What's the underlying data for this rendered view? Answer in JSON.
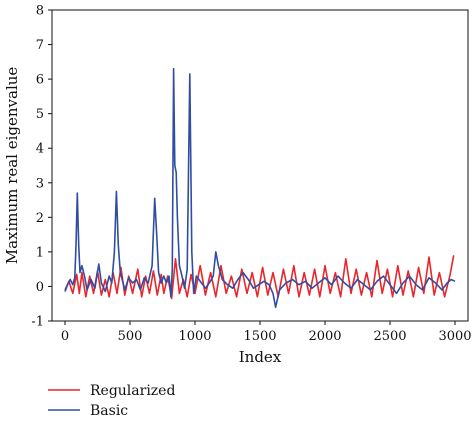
{
  "chart_data": {
    "type": "line",
    "title": "",
    "xlabel": "Index",
    "ylabel": "Maximum real eigenvalue",
    "xlim": [
      -100,
      3100
    ],
    "ylim": [
      -1,
      8
    ],
    "x_ticks": [
      0,
      500,
      1000,
      1500,
      2000,
      2500,
      3000
    ],
    "y_ticks": [
      -1,
      0,
      1,
      2,
      3,
      4,
      5,
      6,
      7,
      8
    ],
    "grid": false,
    "legend_position": "below-left",
    "series": [
      {
        "name": "Regularized",
        "color": "#e8262b",
        "points": [
          [
            0,
            -0.1
          ],
          [
            30,
            0.15
          ],
          [
            60,
            -0.2
          ],
          [
            90,
            0.35
          ],
          [
            110,
            -0.2
          ],
          [
            130,
            0.4
          ],
          [
            160,
            -0.3
          ],
          [
            190,
            0.3
          ],
          [
            220,
            -0.2
          ],
          [
            250,
            0.45
          ],
          [
            280,
            -0.25
          ],
          [
            310,
            0.2
          ],
          [
            340,
            -0.3
          ],
          [
            370,
            0.4
          ],
          [
            400,
            -0.2
          ],
          [
            430,
            0.55
          ],
          [
            460,
            -0.25
          ],
          [
            490,
            0.3
          ],
          [
            520,
            -0.2
          ],
          [
            560,
            0.5
          ],
          [
            590,
            -0.3
          ],
          [
            620,
            0.3
          ],
          [
            650,
            -0.2
          ],
          [
            680,
            0.45
          ],
          [
            710,
            -0.25
          ],
          [
            740,
            0.35
          ],
          [
            760,
            -0.2
          ],
          [
            790,
            0.3
          ],
          [
            820,
            -0.35
          ],
          [
            850,
            0.8
          ],
          [
            880,
            -0.2
          ],
          [
            910,
            0.2
          ],
          [
            940,
            -0.3
          ],
          [
            970,
            0.35
          ],
          [
            1000,
            -0.2
          ],
          [
            1040,
            0.6
          ],
          [
            1080,
            -0.25
          ],
          [
            1120,
            0.4
          ],
          [
            1160,
            -0.3
          ],
          [
            1200,
            0.6
          ],
          [
            1240,
            -0.2
          ],
          [
            1280,
            0.3
          ],
          [
            1320,
            -0.3
          ],
          [
            1360,
            0.5
          ],
          [
            1400,
            -0.2
          ],
          [
            1440,
            0.4
          ],
          [
            1480,
            -0.3
          ],
          [
            1520,
            0.55
          ],
          [
            1560,
            -0.25
          ],
          [
            1600,
            0.4
          ],
          [
            1640,
            -0.3
          ],
          [
            1680,
            0.5
          ],
          [
            1720,
            -0.2
          ],
          [
            1760,
            0.6
          ],
          [
            1800,
            -0.3
          ],
          [
            1840,
            0.4
          ],
          [
            1880,
            -0.25
          ],
          [
            1920,
            0.5
          ],
          [
            1960,
            -0.3
          ],
          [
            2000,
            0.6
          ],
          [
            2040,
            -0.2
          ],
          [
            2080,
            0.4
          ],
          [
            2120,
            -0.3
          ],
          [
            2160,
            0.8
          ],
          [
            2200,
            -0.2
          ],
          [
            2240,
            0.5
          ],
          [
            2280,
            -0.25
          ],
          [
            2320,
            0.4
          ],
          [
            2360,
            -0.3
          ],
          [
            2400,
            0.75
          ],
          [
            2440,
            -0.2
          ],
          [
            2480,
            0.5
          ],
          [
            2520,
            -0.3
          ],
          [
            2560,
            0.6
          ],
          [
            2600,
            -0.25
          ],
          [
            2640,
            0.45
          ],
          [
            2680,
            -0.3
          ],
          [
            2720,
            0.55
          ],
          [
            2760,
            -0.2
          ],
          [
            2800,
            0.85
          ],
          [
            2840,
            -0.25
          ],
          [
            2880,
            0.4
          ],
          [
            2920,
            -0.3
          ],
          [
            2960,
            0.3
          ],
          [
            2990,
            0.9
          ]
        ]
      },
      {
        "name": "Basic",
        "color": "#2f4ea1",
        "points": [
          [
            0,
            -0.15
          ],
          [
            20,
            0.05
          ],
          [
            40,
            0.2
          ],
          [
            60,
            0.05
          ],
          [
            75,
            0.25
          ],
          [
            85,
            1.2
          ],
          [
            95,
            2.7
          ],
          [
            105,
            1.2
          ],
          [
            115,
            0.4
          ],
          [
            130,
            0.6
          ],
          [
            150,
            0.3
          ],
          [
            170,
            -0.1
          ],
          [
            200,
            0.2
          ],
          [
            230,
            -0.05
          ],
          [
            260,
            0.65
          ],
          [
            280,
            0.1
          ],
          [
            310,
            -0.15
          ],
          [
            340,
            0.3
          ],
          [
            360,
            0.1
          ],
          [
            380,
            1.0
          ],
          [
            395,
            2.75
          ],
          [
            410,
            1.2
          ],
          [
            425,
            0.4
          ],
          [
            440,
            0.2
          ],
          [
            460,
            -0.1
          ],
          [
            490,
            0.25
          ],
          [
            520,
            0.1
          ],
          [
            550,
            0.2
          ],
          [
            580,
            -0.1
          ],
          [
            610,
            0.25
          ],
          [
            640,
            0.1
          ],
          [
            670,
            0.6
          ],
          [
            690,
            2.55
          ],
          [
            705,
            1.5
          ],
          [
            720,
            0.4
          ],
          [
            740,
            0.1
          ],
          [
            760,
            0.3
          ],
          [
            780,
            0.1
          ],
          [
            800,
            0.3
          ],
          [
            815,
            -0.3
          ],
          [
            825,
            0.5
          ],
          [
            835,
            6.3
          ],
          [
            845,
            3.5
          ],
          [
            855,
            3.3
          ],
          [
            865,
            2.0
          ],
          [
            880,
            0.6
          ],
          [
            900,
            0.3
          ],
          [
            920,
            -0.05
          ],
          [
            940,
            0.5
          ],
          [
            960,
            6.15
          ],
          [
            975,
            1.0
          ],
          [
            990,
            -0.2
          ],
          [
            1010,
            0.3
          ],
          [
            1050,
            0.1
          ],
          [
            1080,
            -0.05
          ],
          [
            1110,
            0.1
          ],
          [
            1140,
            0.3
          ],
          [
            1160,
            1.0
          ],
          [
            1180,
            0.6
          ],
          [
            1210,
            0.2
          ],
          [
            1250,
            0.05
          ],
          [
            1290,
            -0.05
          ],
          [
            1330,
            0.2
          ],
          [
            1370,
            0.4
          ],
          [
            1410,
            0.2
          ],
          [
            1450,
            -0.05
          ],
          [
            1490,
            0.05
          ],
          [
            1530,
            0.15
          ],
          [
            1570,
            0.05
          ],
          [
            1600,
            -0.2
          ],
          [
            1620,
            -0.6
          ],
          [
            1650,
            -0.1
          ],
          [
            1700,
            0.1
          ],
          [
            1750,
            0.2
          ],
          [
            1800,
            0.05
          ],
          [
            1850,
            0.15
          ],
          [
            1900,
            -0.05
          ],
          [
            1950,
            0.1
          ],
          [
            2000,
            0.25
          ],
          [
            2050,
            0.05
          ],
          [
            2100,
            0.3
          ],
          [
            2150,
            0.1
          ],
          [
            2200,
            -0.05
          ],
          [
            2250,
            0.2
          ],
          [
            2300,
            0.05
          ],
          [
            2350,
            -0.1
          ],
          [
            2400,
            0.15
          ],
          [
            2450,
            0.3
          ],
          [
            2500,
            0.05
          ],
          [
            2550,
            -0.2
          ],
          [
            2600,
            0.1
          ],
          [
            2650,
            0.3
          ],
          [
            2700,
            0.05
          ],
          [
            2750,
            -0.1
          ],
          [
            2800,
            0.25
          ],
          [
            2850,
            0.1
          ],
          [
            2900,
            -0.1
          ],
          [
            2940,
            0.1
          ],
          [
            2970,
            0.2
          ],
          [
            3000,
            0.15
          ]
        ]
      }
    ]
  }
}
